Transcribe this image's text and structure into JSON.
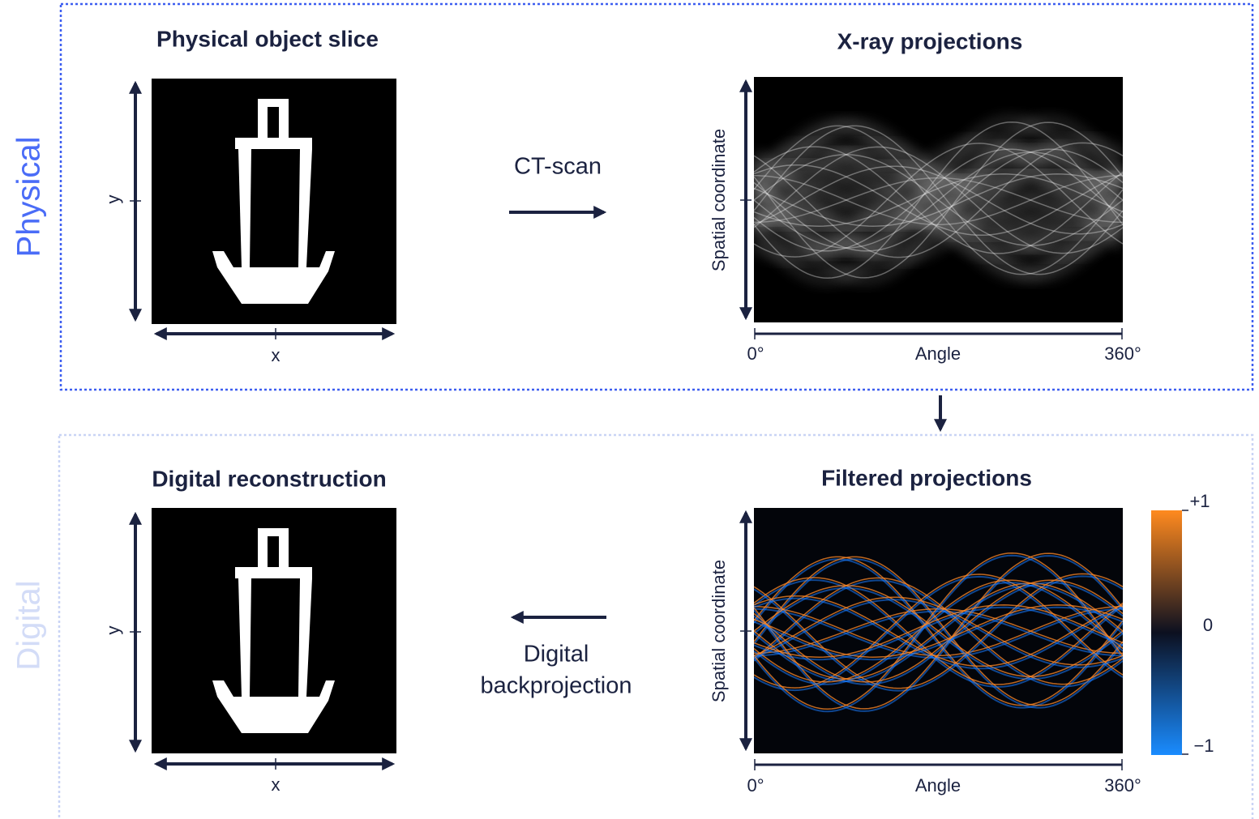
{
  "physical": {
    "label": "Physical",
    "object_panel": {
      "title": "Physical object slice",
      "x_label": "x",
      "y_label": "y"
    },
    "step": "CT-scan",
    "projection_panel": {
      "title": "X-ray projections",
      "y_label": "Spatial coordinate",
      "x_label": "Angle",
      "x_start": "0°",
      "x_end": "360°"
    }
  },
  "digital": {
    "label": "Digital",
    "object_panel": {
      "title": "Digital reconstruction",
      "x_label": "x",
      "y_label": "y"
    },
    "step": [
      "Digital",
      "backprojection"
    ],
    "projection_panel": {
      "title": "Filtered projections",
      "y_label": "Spatial coordinate",
      "x_label": "Angle",
      "x_start": "0°",
      "x_end": "360°",
      "colorbar": {
        "max": "+1",
        "mid": "0",
        "min": "−1"
      }
    }
  }
}
